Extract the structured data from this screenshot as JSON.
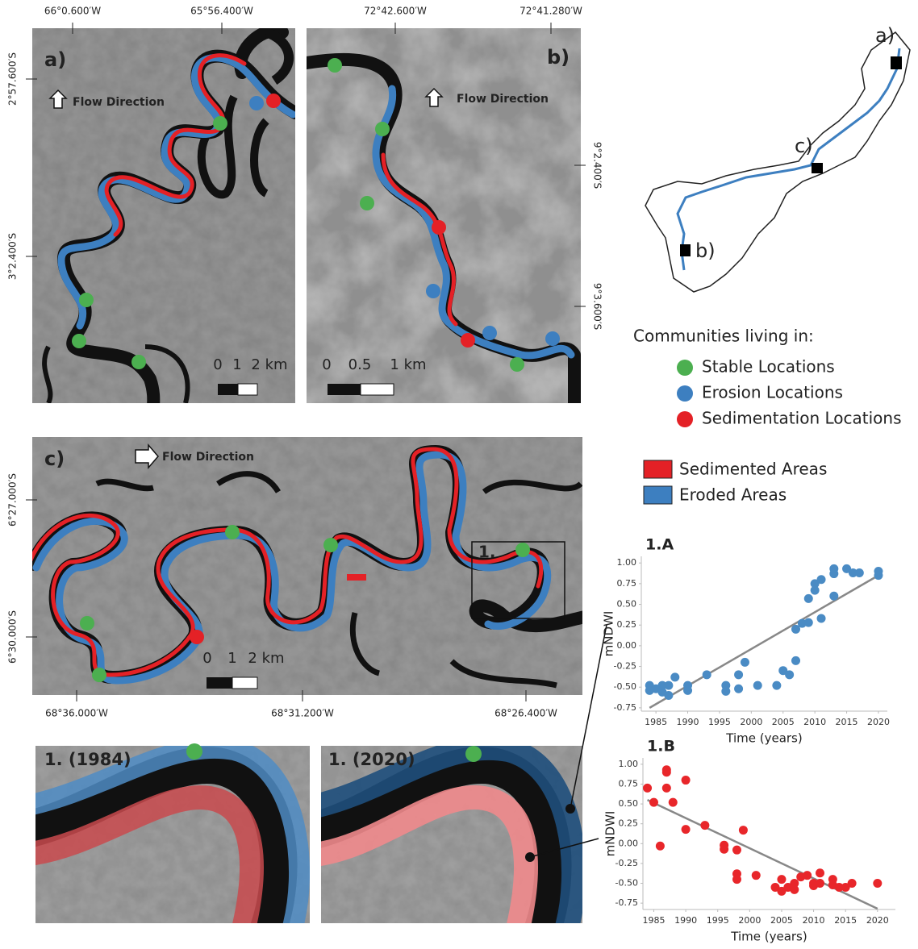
{
  "panels": {
    "a": {
      "label": "a)",
      "flow": "Flow Direction",
      "lon_ticks": [
        "66°0.600′W",
        "65°56.400′W"
      ],
      "lat_ticks": [
        "2°57.600′S",
        "3°2.400′S"
      ],
      "scale": [
        "0",
        "1",
        "2 km"
      ]
    },
    "b": {
      "label": "b)",
      "flow": "Flow Direction",
      "lon_ticks": [
        "72°42.600′W",
        "72°41.280′W"
      ],
      "lat_ticks": [
        "9°2.400′S",
        "9°3.600′S"
      ],
      "scale": [
        "0",
        "0.5",
        "1 km"
      ]
    },
    "c": {
      "label": "c)",
      "flow": "Flow Direction",
      "lon_ticks": [
        "68°36.000′W",
        "68°31.200′W",
        "68°26.400′W"
      ],
      "lat_ticks": [
        "6°27.000′S",
        "6°30.000′S"
      ],
      "scale": [
        "0",
        "1",
        "2 km"
      ],
      "box_label": "1."
    }
  },
  "overview": {
    "labels": [
      "a)",
      "b)",
      "c)"
    ]
  },
  "insets": [
    "1. (1984)",
    "1. (2020)"
  ],
  "legend": {
    "title": "Communities living in:",
    "points": [
      "Stable Locations",
      "Erosion Locations",
      "Sedimentation Locations"
    ],
    "areas": [
      "Sedimented Areas",
      "Eroded Areas"
    ]
  },
  "chart_data": [
    {
      "type": "scatter",
      "title": "1.A",
      "x_label": "Time (years)",
      "y_label": "mNDWI",
      "series": [
        {
          "color": "#4a8bc4",
          "x": [
            1984,
            1984,
            1985,
            1986,
            1986,
            1987,
            1987,
            1988,
            1990,
            1990,
            1993,
            1996,
            1996,
            1998,
            1998,
            1999,
            2001,
            2004,
            2005,
            2006,
            2007,
            2007,
            2008,
            2009,
            2009,
            2010,
            2010,
            2011,
            2011,
            2013,
            2013,
            2013,
            2015,
            2016,
            2017,
            2020,
            2020
          ],
          "values": [
            -0.48,
            -0.54,
            -0.52,
            -0.56,
            -0.48,
            -0.6,
            -0.48,
            -0.38,
            -0.48,
            -0.54,
            -0.35,
            -0.48,
            -0.55,
            -0.35,
            -0.52,
            -0.2,
            -0.48,
            -0.48,
            -0.3,
            -0.35,
            -0.18,
            0.2,
            0.27,
            0.28,
            0.57,
            0.75,
            0.67,
            0.8,
            0.33,
            0.87,
            0.93,
            0.6,
            0.93,
            0.88,
            0.88,
            0.9,
            0.85
          ]
        }
      ],
      "trend_line": {
        "color": "#888888",
        "x": [
          1984,
          2020
        ],
        "values": [
          -0.75,
          0.85
        ]
      },
      "xlim": [
        1982.7,
        2021.4
      ],
      "ylim": [
        -0.79,
        1.08
      ],
      "xticks": [
        1985,
        1990,
        1995,
        2000,
        2005,
        2010,
        2015,
        2020
      ],
      "yticks": [
        {
          "value": 1,
          "label": "1.00"
        },
        0.75,
        {
          "value": 0.5,
          "label": "0.50"
        },
        0.25,
        {
          "value": 0,
          "label": "0.00"
        },
        -0.25,
        {
          "value": -0.5,
          "label": "-0.50"
        },
        -0.75
      ]
    },
    {
      "type": "scatter",
      "title": "1.B",
      "x_label": "Time (years)",
      "y_label": "mNDWI",
      "series": [
        {
          "color": "#e8262a",
          "x": [
            1984,
            1985,
            1986,
            1987,
            1987,
            1987,
            1988,
            1990,
            1990,
            1993,
            1996,
            1996,
            1998,
            1998,
            1998,
            1999,
            2001,
            2004,
            2005,
            2005,
            2006,
            2007,
            2007,
            2008,
            2009,
            2010,
            2010,
            2011,
            2011,
            2013,
            2013,
            2014,
            2015,
            2016,
            2020
          ],
          "values": [
            0.7,
            0.52,
            -0.03,
            0.93,
            0.9,
            0.7,
            0.52,
            0.8,
            0.18,
            0.23,
            -0.02,
            -0.07,
            -0.08,
            -0.38,
            -0.45,
            0.17,
            -0.4,
            -0.55,
            -0.45,
            -0.6,
            -0.55,
            -0.58,
            -0.5,
            -0.42,
            -0.4,
            -0.5,
            -0.53,
            -0.37,
            -0.5,
            -0.45,
            -0.52,
            -0.55,
            -0.55,
            -0.5,
            -0.5
          ]
        }
      ],
      "trend_line": {
        "color": "#888888",
        "x": [
          1984,
          2020
        ],
        "values": [
          0.55,
          -0.82
        ]
      },
      "xlim": [
        1983.3,
        2022.8
      ],
      "ylim": [
        -0.83,
        1.08
      ],
      "xticks": [
        1985,
        1990,
        1995,
        2000,
        2005,
        2010,
        2015,
        2020
      ],
      "yticks": [
        {
          "value": 1,
          "label": "1.00"
        },
        0.75,
        {
          "value": 0.5,
          "label": "0.50"
        },
        0.25,
        {
          "value": 0,
          "label": "0.00"
        },
        -0.25,
        {
          "value": -0.5,
          "label": "-0.50"
        },
        -0.75
      ]
    }
  ]
}
